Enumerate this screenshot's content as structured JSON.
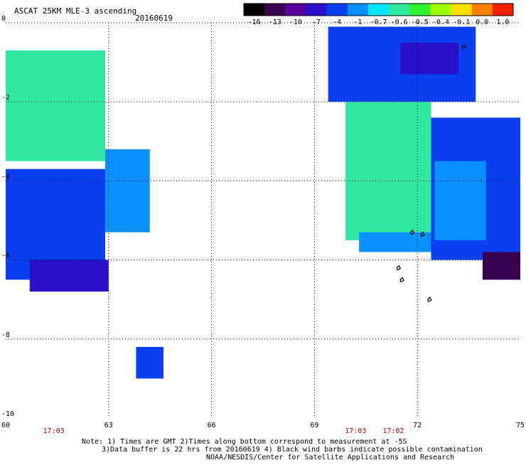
{
  "header": {
    "title": "ASCAT 25KM MLE-3 ascending",
    "date": "20160619"
  },
  "colorbar": {
    "tick_labels": [
      "-16",
      "-13",
      "-10",
      "-7",
      "-4",
      "-1",
      "-0.7",
      "-0.6",
      "-0.5",
      "-0.4",
      "-0.1",
      "0.0",
      "1.0"
    ],
    "colors": [
      "#000000",
      "#3a0050",
      "#5a00a0",
      "#2a10c8",
      "#0a40f0",
      "#0a90ff",
      "#00e8ff",
      "#30e8a0",
      "#30f030",
      "#a0ff00",
      "#ffe000",
      "#ff8000",
      "#f02000"
    ]
  },
  "time_labels": [
    {
      "text": "17:03",
      "lon": 61.4
    },
    {
      "text": "17:03",
      "lon": 70.2
    },
    {
      "text": "17:02",
      "lon": 71.3
    }
  ],
  "footer": {
    "line1": "Note: 1) Times are GMT 2)Times along bottom correspond to measurement at -5S",
    "line2": "3)Data buffer is 22 hrs from 20160619 4) Black wind barbs indicate possible contamination",
    "line3": "NOAA/NESDIS/Center for Satellite Applications and Research"
  },
  "chart_data": {
    "type": "heatmap",
    "title": "ASCAT 25KM MLE-3 ascending",
    "xlim": [
      60,
      75
    ],
    "ylim": [
      -10,
      0
    ],
    "x_ticks": [
      60,
      63,
      66,
      69,
      72,
      75
    ],
    "y_ticks": [
      0,
      -2,
      -4,
      -6,
      -8,
      -10
    ],
    "grid": true,
    "regions": [
      {
        "lon": [
          60.0,
          62.9
        ],
        "lat": [
          -0.7,
          -3.5
        ],
        "value": -0.6
      },
      {
        "lon": [
          60.0,
          62.9
        ],
        "lat": [
          -3.7,
          -6.5
        ],
        "value": -4
      },
      {
        "lon": [
          62.9,
          64.2
        ],
        "lat": [
          -3.2,
          -5.3
        ],
        "value": -1
      },
      {
        "lon": [
          60.7,
          63.0
        ],
        "lat": [
          -6.0,
          -6.8
        ],
        "value": -7
      },
      {
        "lon": [
          63.8,
          64.6
        ],
        "lat": [
          -8.2,
          -9.0
        ],
        "value": -4
      },
      {
        "lon": [
          69.4,
          73.7
        ],
        "lat": [
          -0.1,
          -2.0
        ],
        "value": -4
      },
      {
        "lon": [
          71.5,
          73.2
        ],
        "lat": [
          -0.5,
          -1.3
        ],
        "value": -7
      },
      {
        "lon": [
          69.9,
          72.4
        ],
        "lat": [
          -2.0,
          -5.5
        ],
        "value": -0.6
      },
      {
        "lon": [
          70.3,
          72.4
        ],
        "lat": [
          -5.3,
          -5.8
        ],
        "value": -1
      },
      {
        "lon": [
          72.4,
          75.0
        ],
        "lat": [
          -2.4,
          -6.0
        ],
        "value": -4
      },
      {
        "lon": [
          72.5,
          74.0
        ],
        "lat": [
          -3.5,
          -5.5
        ],
        "value": -1
      },
      {
        "lon": [
          73.9,
          75.0
        ],
        "lat": [
          -5.8,
          -6.5
        ],
        "value": -13
      }
    ]
  }
}
